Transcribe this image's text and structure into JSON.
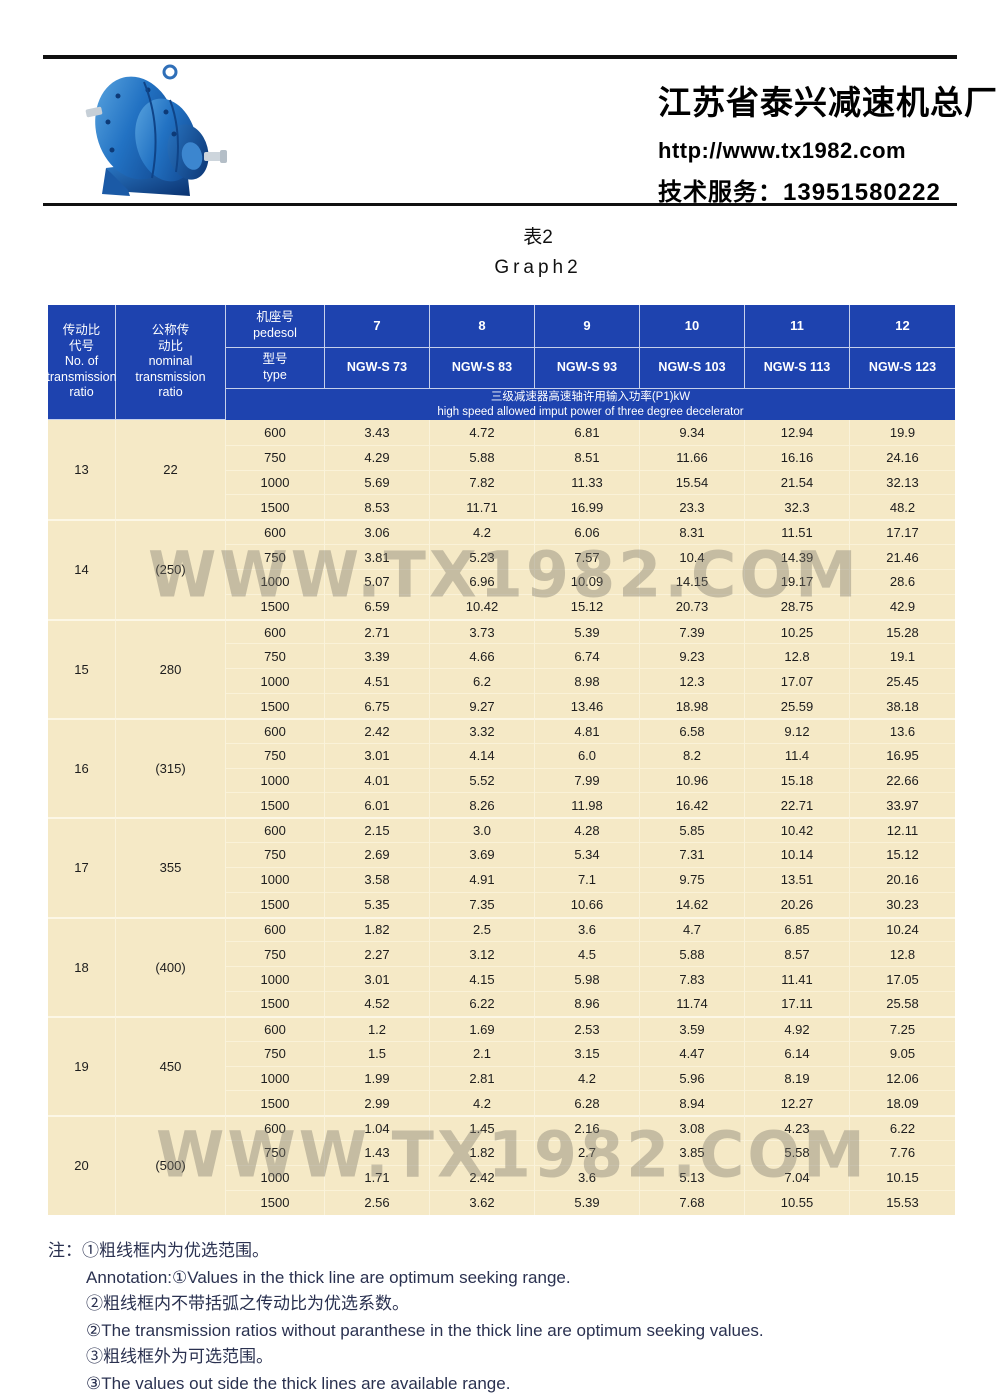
{
  "masthead": {
    "company": "江苏省泰兴减速机总厂",
    "website": "http://www.tx1982.com",
    "service_phone": "技术服务：13951580222",
    "logo": "blue-gear-reducer-photo"
  },
  "titles": {
    "table_no": "表2",
    "graph": "Graph2"
  },
  "watermark": "WWW.TX1982.COM",
  "colors": {
    "header_blue": "#1e43af",
    "table_beige": "#f5e9c6",
    "rule_black": "#101010",
    "note_ink": "#2a3150",
    "watermark_gray": "#7d776b",
    "logo_blue": "#2272c3"
  },
  "table": {
    "corner_col1": [
      "传动比",
      "代号",
      "No. of",
      "transmission",
      "ratio"
    ],
    "corner_col2": [
      "公称传",
      "动比",
      "nominal",
      "transmission",
      "ratio"
    ],
    "pedesol_label": [
      "机座号",
      "pedesol"
    ],
    "type_label": [
      "型号",
      "type"
    ],
    "pedesol_numbers": [
      "7",
      "8",
      "9",
      "10",
      "11",
      "12"
    ],
    "types": [
      "NGW-S 73",
      "NGW-S 83",
      "NGW-S 93",
      "NGW-S 103",
      "NGW-S 113",
      "NGW-S 123"
    ],
    "power_header_cn": "三级减速器高速轴许用输入功率(P1)kW",
    "power_header_en": "high speed allowed imput power of three degree decelerator",
    "groups": [
      {
        "code": "13",
        "ratio": "22",
        "rows": [
          {
            "speed": "600",
            "values": [
              "3.43",
              "4.72",
              "6.81",
              "9.34",
              "12.94",
              "19.9"
            ]
          },
          {
            "speed": "750",
            "values": [
              "4.29",
              "5.88",
              "8.51",
              "11.66",
              "16.16",
              "24.16"
            ]
          },
          {
            "speed": "1000",
            "values": [
              "5.69",
              "7.82",
              "11.33",
              "15.54",
              "21.54",
              "32.13"
            ]
          },
          {
            "speed": "1500",
            "values": [
              "8.53",
              "11.71",
              "16.99",
              "23.3",
              "32.3",
              "48.2"
            ]
          }
        ]
      },
      {
        "code": "14",
        "ratio": "(250)",
        "rows": [
          {
            "speed": "600",
            "values": [
              "3.06",
              "4.2",
              "6.06",
              "8.31",
              "11.51",
              "17.17"
            ]
          },
          {
            "speed": "750",
            "values": [
              "3.81",
              "5.23",
              "7.57",
              "10.4",
              "14.39",
              "21.46"
            ]
          },
          {
            "speed": "1000",
            "values": [
              "5.07",
              "6.96",
              "10.09",
              "14.15",
              "19.17",
              "28.6"
            ]
          },
          {
            "speed": "1500",
            "values": [
              "6.59",
              "10.42",
              "15.12",
              "20.73",
              "28.75",
              "42.9"
            ]
          }
        ]
      },
      {
        "code": "15",
        "ratio": "280",
        "rows": [
          {
            "speed": "600",
            "values": [
              "2.71",
              "3.73",
              "5.39",
              "7.39",
              "10.25",
              "15.28"
            ]
          },
          {
            "speed": "750",
            "values": [
              "3.39",
              "4.66",
              "6.74",
              "9.23",
              "12.8",
              "19.1"
            ]
          },
          {
            "speed": "1000",
            "values": [
              "4.51",
              "6.2",
              "8.98",
              "12.3",
              "17.07",
              "25.45"
            ]
          },
          {
            "speed": "1500",
            "values": [
              "6.75",
              "9.27",
              "13.46",
              "18.98",
              "25.59",
              "38.18"
            ]
          }
        ]
      },
      {
        "code": "16",
        "ratio": "(315)",
        "rows": [
          {
            "speed": "600",
            "values": [
              "2.42",
              "3.32",
              "4.81",
              "6.58",
              "9.12",
              "13.6"
            ]
          },
          {
            "speed": "750",
            "values": [
              "3.01",
              "4.14",
              "6.0",
              "8.2",
              "11.4",
              "16.95"
            ]
          },
          {
            "speed": "1000",
            "values": [
              "4.01",
              "5.52",
              "7.99",
              "10.96",
              "15.18",
              "22.66"
            ]
          },
          {
            "speed": "1500",
            "values": [
              "6.01",
              "8.26",
              "11.98",
              "16.42",
              "22.71",
              "33.97"
            ]
          }
        ]
      },
      {
        "code": "17",
        "ratio": "355",
        "rows": [
          {
            "speed": "600",
            "values": [
              "2.15",
              "3.0",
              "4.28",
              "5.85",
              "10.42",
              "12.11"
            ]
          },
          {
            "speed": "750",
            "values": [
              "2.69",
              "3.69",
              "5.34",
              "7.31",
              "10.14",
              "15.12"
            ]
          },
          {
            "speed": "1000",
            "values": [
              "3.58",
              "4.91",
              "7.1",
              "9.75",
              "13.51",
              "20.16"
            ]
          },
          {
            "speed": "1500",
            "values": [
              "5.35",
              "7.35",
              "10.66",
              "14.62",
              "20.26",
              "30.23"
            ]
          }
        ]
      },
      {
        "code": "18",
        "ratio": "(400)",
        "rows": [
          {
            "speed": "600",
            "values": [
              "1.82",
              "2.5",
              "3.6",
              "4.7",
              "6.85",
              "10.24"
            ]
          },
          {
            "speed": "750",
            "values": [
              "2.27",
              "3.12",
              "4.5",
              "5.88",
              "8.57",
              "12.8"
            ]
          },
          {
            "speed": "1000",
            "values": [
              "3.01",
              "4.15",
              "5.98",
              "7.83",
              "11.41",
              "17.05"
            ]
          },
          {
            "speed": "1500",
            "values": [
              "4.52",
              "6.22",
              "8.96",
              "11.74",
              "17.11",
              "25.58"
            ]
          }
        ]
      },
      {
        "code": "19",
        "ratio": "450",
        "rows": [
          {
            "speed": "600",
            "values": [
              "1.2",
              "1.69",
              "2.53",
              "3.59",
              "4.92",
              "7.25"
            ]
          },
          {
            "speed": "750",
            "values": [
              "1.5",
              "2.1",
              "3.15",
              "4.47",
              "6.14",
              "9.05"
            ]
          },
          {
            "speed": "1000",
            "values": [
              "1.99",
              "2.81",
              "4.2",
              "5.96",
              "8.19",
              "12.06"
            ]
          },
          {
            "speed": "1500",
            "values": [
              "2.99",
              "4.2",
              "6.28",
              "8.94",
              "12.27",
              "18.09"
            ]
          }
        ]
      },
      {
        "code": "20",
        "ratio": "(500)",
        "rows": [
          {
            "speed": "600",
            "values": [
              "1.04",
              "1.45",
              "2.16",
              "3.08",
              "4.23",
              "6.22"
            ]
          },
          {
            "speed": "750",
            "values": [
              "1.43",
              "1.82",
              "2.7",
              "3.85",
              "5.58",
              "7.76"
            ]
          },
          {
            "speed": "1000",
            "values": [
              "1.71",
              "2.42",
              "3.6",
              "5.13",
              "7.04",
              "10.15"
            ]
          },
          {
            "speed": "1500",
            "values": [
              "2.56",
              "3.62",
              "5.39",
              "7.68",
              "10.55",
              "15.53"
            ]
          }
        ]
      }
    ]
  },
  "notes": [
    "注：①粗线框内为优选范围。",
    "Annotation:①Values in the thick line are optimum seeking range.",
    "②粗线框内不带括弧之传动比为优选系数。",
    "②The transmission ratios without paranthese in the thick line are optimum seeking values.",
    "③粗线框外为可选范围。",
    "③The values out side the thick lines are available range."
  ]
}
